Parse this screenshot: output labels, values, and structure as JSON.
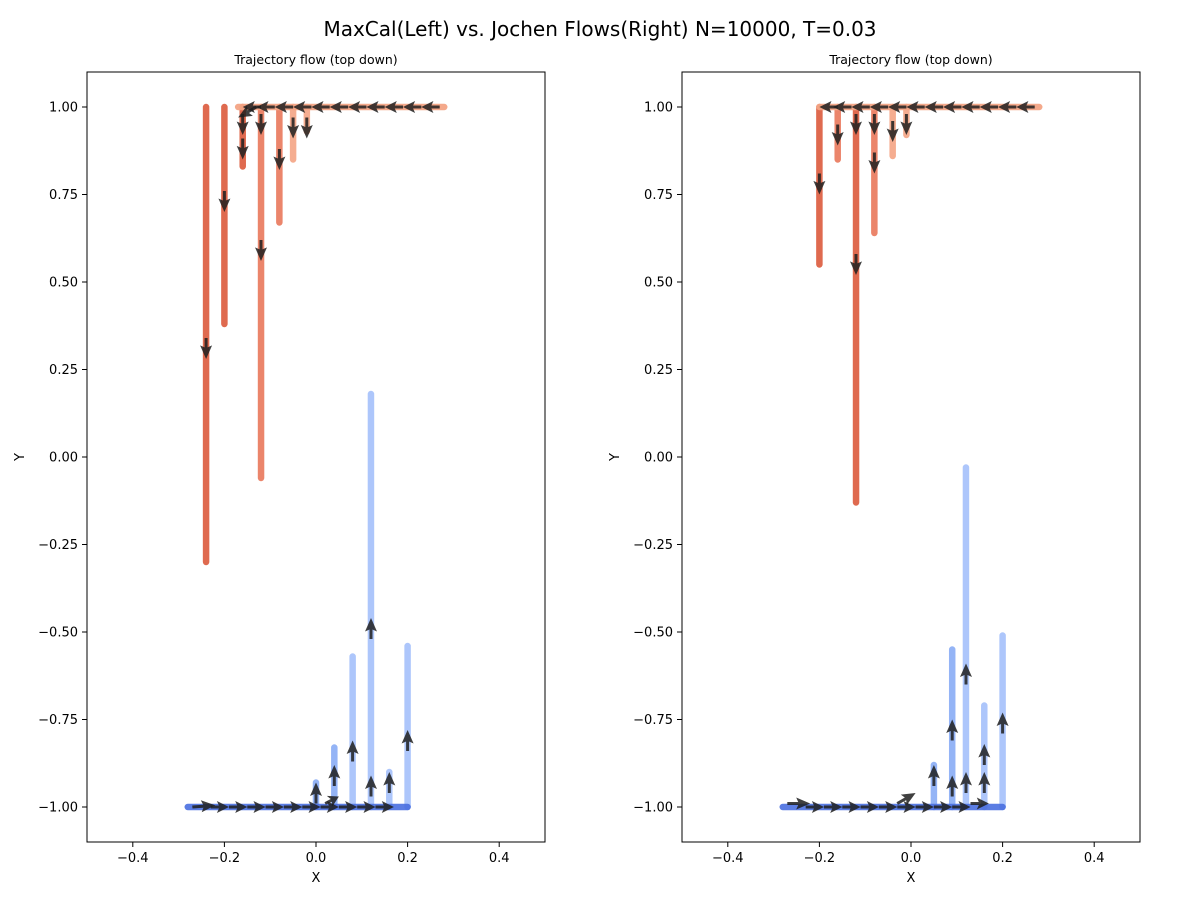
{
  "figure": {
    "suptitle": "MaxCal(Left) vs. Jochen Flows(Right)  N=10000, T=0.03"
  },
  "colors": {
    "red_dark": "#dc5a3c",
    "red_mid": "#e9785c",
    "red_light": "#f4a585",
    "blue_dark": "#4a6fe0",
    "blue_mid": "#8fb0f6",
    "blue_light": "#a9c4fb",
    "arrow": "#1f1f1f"
  },
  "chart_data": [
    {
      "type": "scatter",
      "title": "Trajectory flow (top down)",
      "xlabel": "X",
      "ylabel": "Y",
      "xlim": [
        -0.5,
        0.5
      ],
      "ylim": [
        -1.1,
        1.1
      ],
      "xticks": [
        -0.4,
        -0.2,
        0.0,
        0.2,
        0.4
      ],
      "yticks": [
        -1.0,
        -0.75,
        -0.5,
        -0.25,
        0.0,
        0.25,
        0.5,
        0.75,
        1.0
      ],
      "xtick_labels": [
        "−0.4",
        "−0.2",
        "0.0",
        "0.2",
        "0.4"
      ],
      "ytick_labels": [
        "−1.00",
        "−0.75",
        "−0.50",
        "−0.25",
        "0.00",
        "0.25",
        "0.50",
        "0.75",
        "1.00"
      ],
      "grid": false,
      "red_horizontal": {
        "y": 1.0,
        "x_from": -0.17,
        "x_to": 0.28
      },
      "red_columns": [
        {
          "x": -0.24,
          "y_min": -0.3,
          "shade": "dark"
        },
        {
          "x": -0.2,
          "y_min": 0.38,
          "shade": "dark"
        },
        {
          "x": -0.16,
          "y_min": 0.83,
          "shade": "dark"
        },
        {
          "x": -0.12,
          "y_min": -0.06,
          "shade": "mid"
        },
        {
          "x": -0.08,
          "y_min": 0.67,
          "shade": "mid"
        },
        {
          "x": -0.05,
          "y_min": 0.85,
          "shade": "light"
        },
        {
          "x": -0.02,
          "y_min": 0.93,
          "shade": "light"
        }
      ],
      "blue_horizontal": {
        "y": -1.0,
        "x_from": -0.28,
        "x_to": 0.2
      },
      "blue_columns": [
        {
          "x": 0.0,
          "y_max": -0.93,
          "shade": "mid"
        },
        {
          "x": 0.04,
          "y_max": -0.83,
          "shade": "mid"
        },
        {
          "x": 0.08,
          "y_max": -0.57,
          "shade": "light"
        },
        {
          "x": 0.12,
          "y_max": 0.18,
          "shade": "light"
        },
        {
          "x": 0.16,
          "y_max": -0.9,
          "shade": "light"
        },
        {
          "x": 0.2,
          "y_max": -0.54,
          "shade": "light"
        }
      ],
      "arrows": [
        {
          "x": 0.27,
          "y": 1.0,
          "dx": -0.04,
          "dy": 0
        },
        {
          "x": 0.23,
          "y": 1.0,
          "dx": -0.04,
          "dy": 0
        },
        {
          "x": 0.19,
          "y": 1.0,
          "dx": -0.04,
          "dy": 0
        },
        {
          "x": 0.15,
          "y": 1.0,
          "dx": -0.04,
          "dy": 0
        },
        {
          "x": 0.11,
          "y": 1.0,
          "dx": -0.04,
          "dy": 0
        },
        {
          "x": 0.07,
          "y": 1.0,
          "dx": -0.04,
          "dy": 0
        },
        {
          "x": 0.03,
          "y": 1.0,
          "dx": -0.04,
          "dy": 0
        },
        {
          "x": -0.01,
          "y": 1.0,
          "dx": -0.04,
          "dy": 0
        },
        {
          "x": -0.05,
          "y": 1.0,
          "dx": -0.04,
          "dy": 0
        },
        {
          "x": -0.09,
          "y": 1.0,
          "dx": -0.04,
          "dy": 0
        },
        {
          "x": -0.12,
          "y": 1.0,
          "dx": -0.04,
          "dy": 0
        },
        {
          "x": -0.13,
          "y": 1.0,
          "dx": -0.04,
          "dy": -0.03
        },
        {
          "x": -0.16,
          "y": 0.98,
          "dx": 0,
          "dy": -0.06
        },
        {
          "x": -0.16,
          "y": 0.91,
          "dx": 0,
          "dy": -0.06
        },
        {
          "x": -0.12,
          "y": 0.98,
          "dx": 0,
          "dy": -0.06
        },
        {
          "x": -0.08,
          "y": 0.88,
          "dx": 0,
          "dy": -0.06
        },
        {
          "x": -0.05,
          "y": 0.97,
          "dx": 0,
          "dy": -0.06
        },
        {
          "x": -0.02,
          "y": 0.97,
          "dx": 0,
          "dy": -0.06
        },
        {
          "x": -0.2,
          "y": 0.76,
          "dx": 0,
          "dy": -0.06
        },
        {
          "x": -0.12,
          "y": 0.62,
          "dx": 0,
          "dy": -0.06
        },
        {
          "x": -0.24,
          "y": 0.34,
          "dx": 0,
          "dy": -0.06
        },
        {
          "x": -0.27,
          "y": -1.0,
          "dx": 0.05,
          "dy": 0.005
        },
        {
          "x": -0.23,
          "y": -1.0,
          "dx": 0.04,
          "dy": 0
        },
        {
          "x": -0.19,
          "y": -1.0,
          "dx": 0.04,
          "dy": 0
        },
        {
          "x": -0.15,
          "y": -1.0,
          "dx": 0.04,
          "dy": 0
        },
        {
          "x": -0.11,
          "y": -1.0,
          "dx": 0.04,
          "dy": 0
        },
        {
          "x": -0.07,
          "y": -1.0,
          "dx": 0.04,
          "dy": 0
        },
        {
          "x": -0.03,
          "y": -1.0,
          "dx": 0.04,
          "dy": 0
        },
        {
          "x": 0.01,
          "y": -1.0,
          "dx": 0.04,
          "dy": 0
        },
        {
          "x": 0.05,
          "y": -1.0,
          "dx": 0.04,
          "dy": 0
        },
        {
          "x": 0.09,
          "y": -1.0,
          "dx": 0.04,
          "dy": 0
        },
        {
          "x": 0.13,
          "y": -1.0,
          "dx": 0.04,
          "dy": 0
        },
        {
          "x": 0.02,
          "y": -0.99,
          "dx": 0.03,
          "dy": 0.02
        },
        {
          "x": 0.0,
          "y": -0.99,
          "dx": 0.0,
          "dy": 0.06
        },
        {
          "x": 0.04,
          "y": -0.94,
          "dx": 0,
          "dy": 0.06
        },
        {
          "x": 0.08,
          "y": -0.87,
          "dx": 0,
          "dy": 0.06
        },
        {
          "x": 0.12,
          "y": -0.97,
          "dx": 0,
          "dy": 0.06
        },
        {
          "x": 0.16,
          "y": -0.96,
          "dx": 0,
          "dy": 0.06
        },
        {
          "x": 0.12,
          "y": -0.52,
          "dx": 0,
          "dy": 0.06
        },
        {
          "x": 0.2,
          "y": -0.84,
          "dx": 0,
          "dy": 0.06
        }
      ]
    },
    {
      "type": "scatter",
      "title": "Trajectory flow (top down)",
      "xlabel": "X",
      "ylabel": "Y",
      "xlim": [
        -0.5,
        0.5
      ],
      "ylim": [
        -1.1,
        1.1
      ],
      "xticks": [
        -0.4,
        -0.2,
        0.0,
        0.2,
        0.4
      ],
      "yticks": [
        -1.0,
        -0.75,
        -0.5,
        -0.25,
        0.0,
        0.25,
        0.5,
        0.75,
        1.0
      ],
      "xtick_labels": [
        "−0.4",
        "−0.2",
        "0.0",
        "0.2",
        "0.4"
      ],
      "ytick_labels": [
        "−1.00",
        "−0.75",
        "−0.50",
        "−0.25",
        "0.00",
        "0.25",
        "0.50",
        "0.75",
        "1.00"
      ],
      "grid": false,
      "red_horizontal": {
        "y": 1.0,
        "x_from": -0.2,
        "x_to": 0.28
      },
      "red_columns": [
        {
          "x": -0.2,
          "y_min": 0.55,
          "shade": "dark"
        },
        {
          "x": -0.16,
          "y_min": 0.85,
          "shade": "mid"
        },
        {
          "x": -0.12,
          "y_min": -0.13,
          "shade": "dark"
        },
        {
          "x": -0.08,
          "y_min": 0.64,
          "shade": "mid"
        },
        {
          "x": -0.04,
          "y_min": 0.86,
          "shade": "light"
        },
        {
          "x": -0.01,
          "y_min": 0.92,
          "shade": "light"
        }
      ],
      "blue_horizontal": {
        "y": -1.0,
        "x_from": -0.28,
        "x_to": 0.2
      },
      "blue_columns": [
        {
          "x": 0.05,
          "y_max": -0.88,
          "shade": "mid"
        },
        {
          "x": 0.09,
          "y_max": -0.55,
          "shade": "mid"
        },
        {
          "x": 0.12,
          "y_max": -0.03,
          "shade": "light"
        },
        {
          "x": 0.16,
          "y_max": -0.71,
          "shade": "light"
        },
        {
          "x": 0.2,
          "y_max": -0.51,
          "shade": "light"
        }
      ],
      "arrows": [
        {
          "x": 0.27,
          "y": 1.0,
          "dx": -0.04,
          "dy": 0
        },
        {
          "x": 0.23,
          "y": 1.0,
          "dx": -0.04,
          "dy": 0
        },
        {
          "x": 0.19,
          "y": 1.0,
          "dx": -0.04,
          "dy": 0
        },
        {
          "x": 0.15,
          "y": 1.0,
          "dx": -0.04,
          "dy": 0
        },
        {
          "x": 0.11,
          "y": 1.0,
          "dx": -0.04,
          "dy": 0
        },
        {
          "x": 0.07,
          "y": 1.0,
          "dx": -0.04,
          "dy": 0
        },
        {
          "x": 0.03,
          "y": 1.0,
          "dx": -0.04,
          "dy": 0
        },
        {
          "x": -0.01,
          "y": 1.0,
          "dx": -0.04,
          "dy": 0
        },
        {
          "x": -0.05,
          "y": 1.0,
          "dx": -0.04,
          "dy": 0
        },
        {
          "x": -0.09,
          "y": 1.0,
          "dx": -0.04,
          "dy": 0
        },
        {
          "x": -0.13,
          "y": 1.0,
          "dx": -0.04,
          "dy": 0
        },
        {
          "x": -0.16,
          "y": 1.0,
          "dx": -0.04,
          "dy": 0
        },
        {
          "x": -0.16,
          "y": 0.95,
          "dx": 0,
          "dy": -0.06
        },
        {
          "x": -0.12,
          "y": 0.98,
          "dx": 0,
          "dy": -0.06
        },
        {
          "x": -0.08,
          "y": 0.98,
          "dx": 0,
          "dy": -0.06
        },
        {
          "x": -0.04,
          "y": 0.96,
          "dx": 0,
          "dy": -0.06
        },
        {
          "x": -0.01,
          "y": 0.98,
          "dx": 0,
          "dy": -0.06
        },
        {
          "x": -0.08,
          "y": 0.87,
          "dx": 0,
          "dy": -0.06
        },
        {
          "x": -0.2,
          "y": 0.81,
          "dx": 0,
          "dy": -0.06
        },
        {
          "x": -0.12,
          "y": 0.58,
          "dx": 0,
          "dy": -0.06
        },
        {
          "x": -0.27,
          "y": -0.99,
          "dx": 0.05,
          "dy": 0
        },
        {
          "x": -0.23,
          "y": -1.0,
          "dx": 0.04,
          "dy": 0
        },
        {
          "x": -0.19,
          "y": -1.0,
          "dx": 0.04,
          "dy": 0
        },
        {
          "x": -0.15,
          "y": -1.0,
          "dx": 0.04,
          "dy": 0
        },
        {
          "x": -0.11,
          "y": -1.0,
          "dx": 0.04,
          "dy": 0
        },
        {
          "x": -0.07,
          "y": -1.0,
          "dx": 0.04,
          "dy": 0
        },
        {
          "x": -0.03,
          "y": -1.0,
          "dx": 0.04,
          "dy": 0
        },
        {
          "x": 0.01,
          "y": -1.0,
          "dx": 0.04,
          "dy": 0
        },
        {
          "x": 0.05,
          "y": -1.0,
          "dx": 0.04,
          "dy": 0
        },
        {
          "x": 0.09,
          "y": -1.0,
          "dx": 0.04,
          "dy": 0
        },
        {
          "x": 0.13,
          "y": -0.99,
          "dx": 0.04,
          "dy": 0
        },
        {
          "x": -0.03,
          "y": -0.99,
          "dx": 0.04,
          "dy": 0.03
        },
        {
          "x": 0.05,
          "y": -0.94,
          "dx": 0,
          "dy": 0.06
        },
        {
          "x": 0.09,
          "y": -0.97,
          "dx": 0,
          "dy": 0.06
        },
        {
          "x": 0.12,
          "y": -0.96,
          "dx": 0,
          "dy": 0.06
        },
        {
          "x": 0.16,
          "y": -0.96,
          "dx": 0,
          "dy": 0.06
        },
        {
          "x": 0.09,
          "y": -0.81,
          "dx": 0,
          "dy": 0.06
        },
        {
          "x": 0.12,
          "y": -0.65,
          "dx": 0,
          "dy": 0.06
        },
        {
          "x": 0.16,
          "y": -0.88,
          "dx": 0,
          "dy": 0.06
        },
        {
          "x": 0.2,
          "y": -0.79,
          "dx": 0,
          "dy": 0.06
        }
      ]
    }
  ]
}
